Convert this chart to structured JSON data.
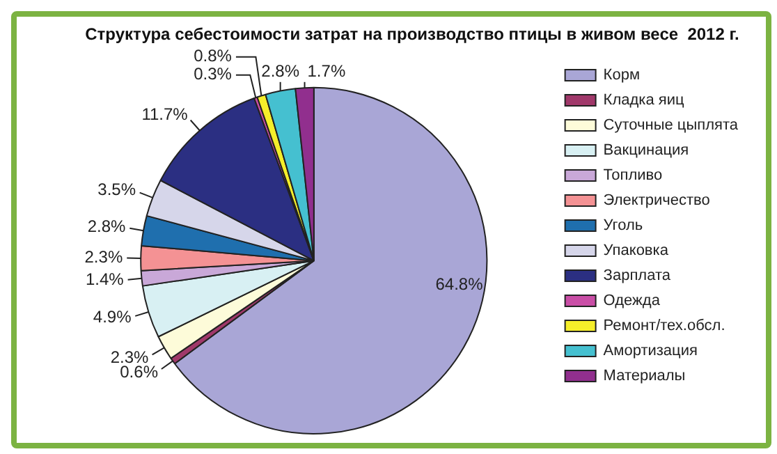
{
  "chart_data": {
    "type": "pie",
    "title": "Структура себестоимости затрат на производство птицы в живом весе  2012 г.",
    "categories": [
      "Корм",
      "Кладка яиц",
      "Суточные цыплята",
      "Вакцинация",
      "Топливо",
      "Электричество",
      "Уголь",
      "Упаковка",
      "Зарплата",
      "Одежда",
      "Ремонт/тех.обсл.",
      "Амортизация",
      "Материалы"
    ],
    "values": [
      64.8,
      0.6,
      2.3,
      4.9,
      1.4,
      2.3,
      2.8,
      3.5,
      11.7,
      0.3,
      0.8,
      2.8,
      1.7
    ],
    "value_labels": [
      "64.8%",
      "0.6%",
      "2.3%",
      "4.9%",
      "1.4%",
      "2.3%",
      "2.8%",
      "3.5%",
      "11.7%",
      "0.3%",
      "0.8%",
      "2.8%",
      "1.7%"
    ],
    "colors": [
      "#a9a6d6",
      "#a0386a",
      "#fdfbd9",
      "#d8f0f3",
      "#c9a8d8",
      "#f49294",
      "#1f6fae",
      "#d6d6ea",
      "#2b2f82",
      "#c94ea6",
      "#f5ee2a",
      "#45c0d0",
      "#912f8e"
    ],
    "legend": "right"
  }
}
